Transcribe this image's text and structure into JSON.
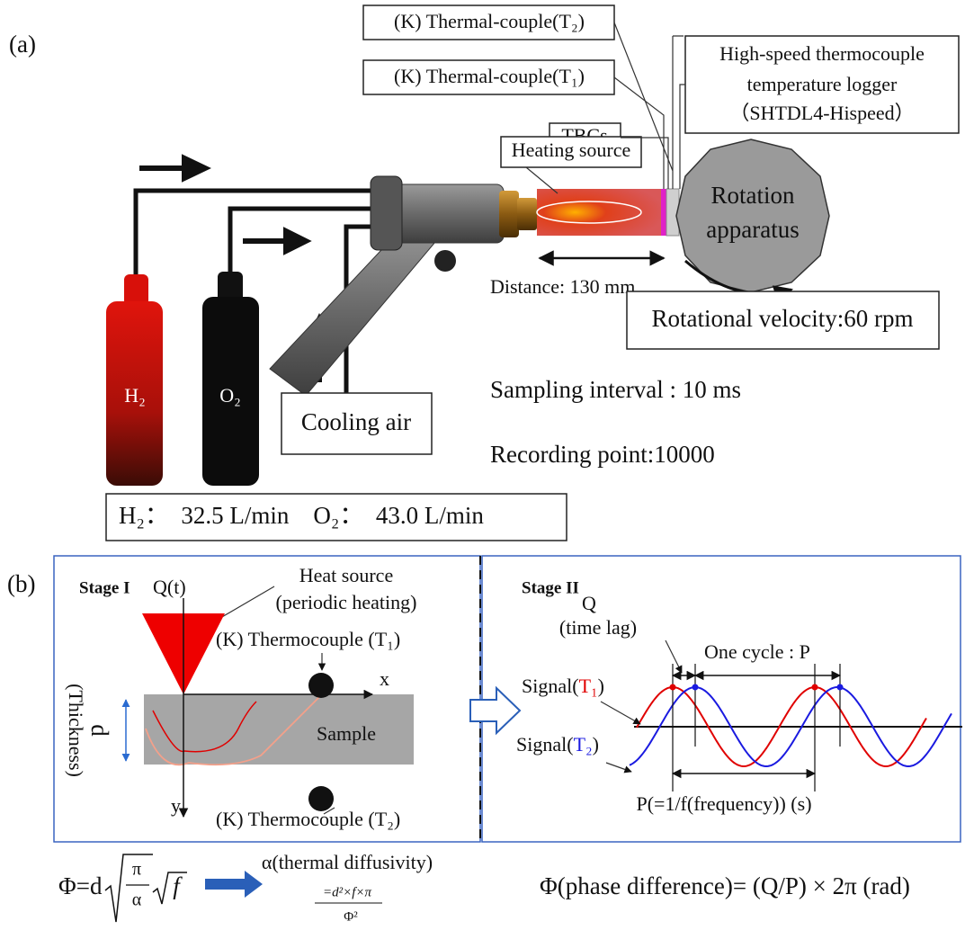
{
  "panel_a": {
    "label": "(a)",
    "thermocouple_t2": "(K) Thermal-couple(T₂)",
    "thermocouple_t1": "(K) Thermal-couple(T₁)",
    "logger": [
      "High-speed thermocouple",
      "temperature logger",
      "（SHTDL4-Hispeed）"
    ],
    "tbcs": "TBCs",
    "heating_source": "Heating source",
    "rotation": [
      "Rotation",
      "apparatus"
    ],
    "distance": "Distance: 130 mm",
    "rotational_velocity": "Rotational velocity:60 rpm",
    "sampling_interval": "Sampling interval : 10 ms",
    "recording_point": "Recording point:10000",
    "h2_cylinder": "H₂",
    "o2_cylinder": "O₂",
    "cooling_air": "Cooling air",
    "flow_rates": "H₂：  32.5 L/min    O₂：  43.0 L/min"
  },
  "panel_b": {
    "label": "(b)",
    "stage_1": {
      "title": "Stage I",
      "q_t": "Q(t)",
      "heat_source": [
        "Heat source",
        "(periodic heating)"
      ],
      "thermocouple_t1": "(K) Thermocouple (T₁)",
      "thermocouple_t2": "(K) Thermocouple (T₂)",
      "x_axis": "x",
      "y_axis": "y",
      "d": "d",
      "thickness": "(Thickness)",
      "sample": "Sample"
    },
    "stage_2": {
      "title": "Stage II",
      "q": "Q",
      "time_lag": "(time lag)",
      "one_cycle": "One cycle : P",
      "signal_t1": {
        "prefix": "Signal(",
        "sensor": "T₁",
        "suffix": ")"
      },
      "signal_t2": {
        "prefix": "Signal(",
        "sensor": "T₂",
        "suffix": ")"
      },
      "period": "P(=1/f(frequency)) (s)"
    }
  },
  "formulas": {
    "phi": {
      "lhs": "Φ=d",
      "numerator": "π",
      "denominator": "α",
      "radicand": "f"
    },
    "alpha": {
      "label": "α(thermal diffusivity)",
      "numerator": "=d²×f×π",
      "denominator": "Φ²"
    },
    "phase": "Φ(phase difference)= (Q/P) × 2π (rad)"
  }
}
